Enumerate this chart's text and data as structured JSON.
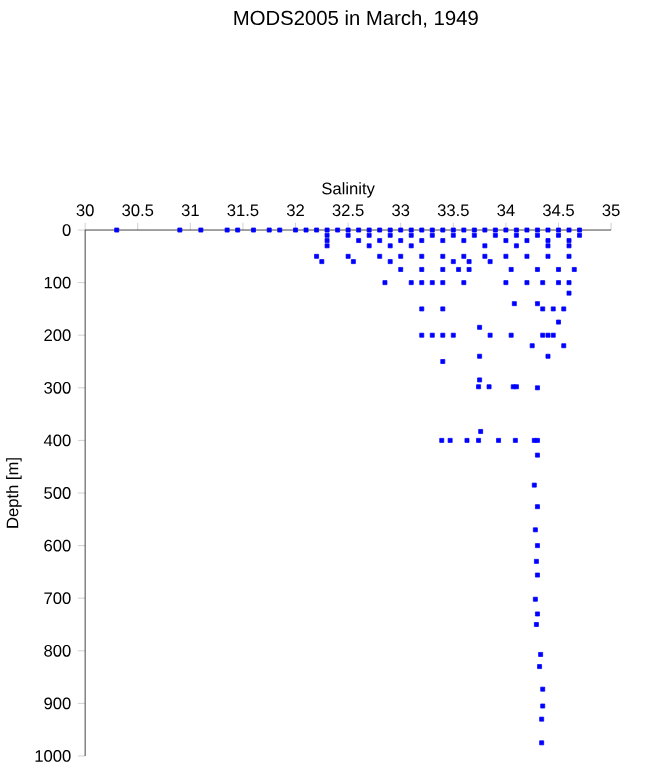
{
  "chart_data": {
    "type": "scatter",
    "title": "MODS2005 in March, 1949",
    "xlabel": "Salinity",
    "ylabel": "Depth [m]",
    "xlim": [
      30,
      35
    ],
    "xticks": [
      30,
      30.5,
      31,
      31.5,
      32,
      32.5,
      33,
      33.5,
      34,
      34.5,
      35
    ],
    "ylim": [
      1000,
      0
    ],
    "yticks": [
      0,
      100,
      200,
      300,
      400,
      500,
      600,
      700,
      800,
      900,
      1000
    ],
    "marker": "square",
    "grid": false,
    "series": [
      {
        "color": "#0000ff",
        "x": [
          30.3,
          30.9,
          31.1,
          31.35,
          31.45,
          31.6,
          31.75,
          31.85,
          32.0,
          32.1,
          32.2,
          32.3,
          32.4,
          32.5,
          32.6,
          32.7,
          32.8,
          32.9,
          33.0,
          33.1,
          33.2,
          33.3,
          33.4,
          33.5,
          33.6,
          33.7,
          33.8,
          33.9,
          34.0,
          34.1,
          34.2,
          34.3,
          34.4,
          34.5,
          34.6,
          34.7,
          32.3,
          32.5,
          32.7,
          32.9,
          33.1,
          33.3,
          33.5,
          33.7,
          33.9,
          34.1,
          34.3,
          34.5,
          34.7,
          32.3,
          32.6,
          32.8,
          33.0,
          33.2,
          33.4,
          33.6,
          34.0,
          34.2,
          34.4,
          34.6,
          32.3,
          32.7,
          32.9,
          33.1,
          33.8,
          34.1,
          34.4,
          34.6,
          32.2,
          32.5,
          32.8,
          33.0,
          33.2,
          33.4,
          33.6,
          33.8,
          34.0,
          34.2,
          34.4,
          34.6,
          32.25,
          32.55,
          32.9,
          33.5,
          33.65,
          33.85,
          33.0,
          33.2,
          33.4,
          33.55,
          33.65,
          34.05,
          34.3,
          34.5,
          34.65,
          32.85,
          33.1,
          33.2,
          33.3,
          33.4,
          33.6,
          34.0,
          34.2,
          34.35,
          34.5,
          34.6,
          34.6,
          34.08,
          34.3,
          33.2,
          33.4,
          34.35,
          34.45,
          34.55,
          34.5,
          33.75,
          33.2,
          33.3,
          33.4,
          33.5,
          33.85,
          34.05,
          34.35,
          34.4,
          34.45,
          34.25,
          34.55,
          33.75,
          34.4,
          33.4,
          33.75,
          33.74,
          33.84,
          34.07,
          34.1,
          34.3,
          33.76,
          33.39,
          33.47,
          33.63,
          33.74,
          33.93,
          34.09,
          34.27,
          34.3,
          34.3,
          34.27,
          34.3,
          34.28,
          34.3,
          34.29,
          34.3,
          34.28,
          34.3,
          34.29,
          34.33,
          34.32,
          34.35,
          34.35,
          34.34,
          34.34
        ],
        "values": [
          0,
          0,
          0,
          0,
          0,
          0,
          0,
          0,
          0,
          0,
          0,
          0,
          0,
          0,
          0,
          0,
          0,
          0,
          0,
          0,
          0,
          0,
          0,
          0,
          0,
          0,
          0,
          0,
          0,
          0,
          0,
          0,
          0,
          0,
          0,
          0,
          10,
          10,
          10,
          10,
          10,
          10,
          10,
          10,
          10,
          10,
          10,
          10,
          10,
          20,
          20,
          20,
          20,
          20,
          20,
          20,
          20,
          20,
          20,
          20,
          30,
          30,
          30,
          30,
          30,
          30,
          30,
          30,
          50,
          50,
          50,
          50,
          50,
          50,
          50,
          50,
          50,
          50,
          50,
          50,
          60,
          60,
          60,
          60,
          60,
          60,
          75,
          75,
          75,
          75,
          75,
          75,
          75,
          75,
          75,
          100,
          100,
          100,
          100,
          100,
          100,
          100,
          100,
          100,
          100,
          100,
          120,
          140,
          140,
          150,
          150,
          150,
          150,
          150,
          175,
          185,
          200,
          200,
          200,
          200,
          200,
          200,
          200,
          200,
          200,
          220,
          220,
          240,
          240,
          250,
          285,
          298,
          298,
          298,
          298,
          300,
          383,
          400,
          400,
          400,
          400,
          400,
          400,
          400,
          400,
          428,
          485,
          526,
          570,
          600,
          630,
          656,
          702,
          730,
          750,
          807,
          830,
          873,
          905,
          930,
          975
        ]
      }
    ]
  }
}
